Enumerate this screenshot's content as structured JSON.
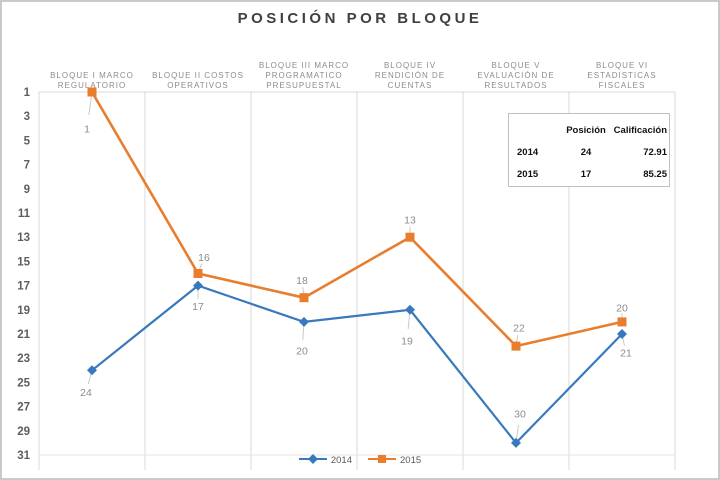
{
  "title": "POSICIÓN POR BLOQUE",
  "chart_data": {
    "type": "line",
    "title": "POSICIÓN POR BLOQUE",
    "categories": [
      "BLOQUE I MARCO REGULATORIO",
      "BLOQUE II COSTOS OPERATIVOS",
      "BLOQUE III MARCO PROGRAMATICO PRESUPUESTAL",
      "BLOQUE IV RENDICIÓN DE CUENTAS",
      "BLOQUE V EVALUACIÓN DE RESULTADOS",
      "BLOQUE VI ESTADISTICAS FISCALES"
    ],
    "category_lines": [
      [
        "BLOQUE I MARCO",
        "REGULATORIO"
      ],
      [
        "BLOQUE II COSTOS",
        "OPERATIVOS"
      ],
      [
        "BLOQUE III MARCO",
        "PROGRAMATICO",
        "PRESUPUESTAL"
      ],
      [
        "BLOQUE IV",
        "RENDICIÓN DE",
        "CUENTAS"
      ],
      [
        "BLOQUE V",
        "EVALUACIÓN DE",
        "RESULTADOS"
      ],
      [
        "BLOQUE VI",
        "ESTADISTICAS",
        "FISCALES"
      ]
    ],
    "series": [
      {
        "name": "2014",
        "color": "#3879BE",
        "marker": "diamond",
        "values": [
          24,
          17,
          20,
          19,
          30,
          21
        ],
        "label_offsets": [
          [
            -6,
            22
          ],
          [
            0,
            21
          ],
          [
            -2,
            29
          ],
          [
            -3,
            31
          ],
          [
            4,
            -29
          ],
          [
            4,
            19
          ]
        ]
      },
      {
        "name": "2015",
        "color": "#E97D2E",
        "marker": "square",
        "values": [
          1,
          16,
          18,
          13,
          22,
          20
        ],
        "label_offsets": [
          [
            -5,
            37
          ],
          [
            6,
            -16
          ],
          [
            -2,
            -17
          ],
          [
            0,
            -17
          ],
          [
            3,
            -18
          ],
          [
            0,
            -14
          ]
        ]
      }
    ],
    "y_axis": {
      "min": 1,
      "max": 31,
      "step": 2,
      "inverted": true
    },
    "grid": "vertical-category-separators",
    "legend_position": "bottom"
  },
  "summary_table": {
    "headers": [
      "",
      "Posición",
      "Calificación"
    ],
    "rows": [
      [
        "2014",
        "24",
        "72.91"
      ],
      [
        "2015",
        "17",
        "85.25"
      ]
    ]
  },
  "legend": {
    "items": [
      {
        "label": "2014",
        "color": "#3879BE",
        "marker": "diamond"
      },
      {
        "label": "2015",
        "color": "#E97D2E",
        "marker": "square"
      }
    ]
  },
  "colors": {
    "grid": "#d9d9d9",
    "axis_label": "#5e5e5e",
    "data_label": "#8c8c8c",
    "category_label": "#8c8c8c",
    "leader_line": "#c8c8c8",
    "frame_border": "#c9c9c9"
  }
}
